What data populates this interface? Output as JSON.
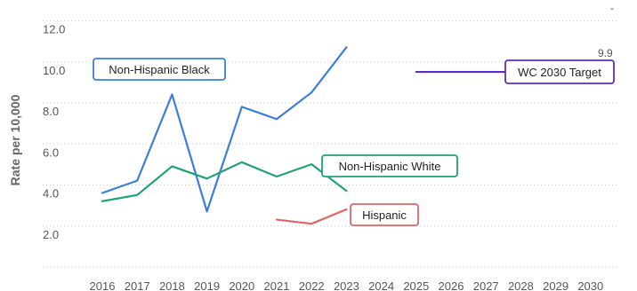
{
  "chart_data": {
    "type": "line",
    "title": "",
    "xlabel": "",
    "ylabel": "Rate per 10,000",
    "x": [
      "2016",
      "2017",
      "2018",
      "2019",
      "2020",
      "2021",
      "2022",
      "2023",
      "2024",
      "2025",
      "2026",
      "2027",
      "2028",
      "2029",
      "2030"
    ],
    "ylim": [
      0,
      12.8
    ],
    "yticks": [
      "2.0",
      "4.0",
      "6.0",
      "8.0",
      "10.0",
      "12.0"
    ],
    "ytick_values": [
      2,
      4,
      6,
      8,
      10,
      12
    ],
    "grid": true,
    "series": [
      {
        "name": "Non-Hispanic Black",
        "color": "#3b7ddd",
        "values": [
          4.0,
          4.6,
          8.8,
          3.1,
          8.2,
          7.6,
          8.9,
          11.1,
          null,
          null,
          null,
          null,
          null,
          null,
          null
        ],
        "label_box_color": "#3b7ddd"
      },
      {
        "name": "Non-Hispanic White",
        "color": "#21a07a",
        "values": [
          3.6,
          3.9,
          5.3,
          4.7,
          5.5,
          4.8,
          5.4,
          4.1,
          null,
          null,
          null,
          null,
          null,
          null,
          null
        ],
        "label_box_color": "#21a07a"
      },
      {
        "name": "Hispanic",
        "color": "#e06666",
        "values": [
          null,
          null,
          null,
          null,
          null,
          2.7,
          2.5,
          3.2,
          null,
          null,
          null,
          null,
          null,
          null,
          null
        ],
        "label_box_color": "#e06666"
      },
      {
        "name": "WC 2030 Target",
        "color": "#5b2bc9",
        "values": [
          null,
          null,
          null,
          null,
          null,
          null,
          null,
          null,
          null,
          9.9,
          9.9,
          9.9,
          9.9,
          9.9,
          9.9
        ],
        "label_box_color": "#5b2bc9"
      }
    ],
    "annotations": [
      {
        "text": "9.9",
        "series": "WC 2030 Target"
      },
      {
        "text": "-",
        "note": "top-right marker"
      }
    ]
  }
}
